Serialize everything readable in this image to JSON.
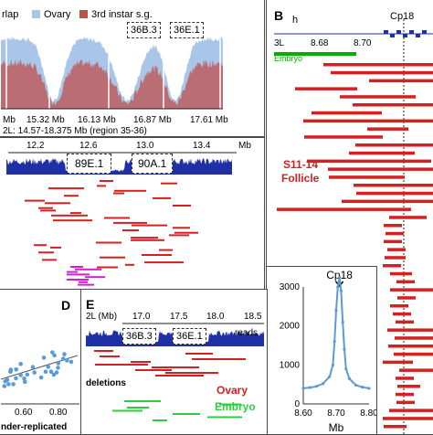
{
  "panel_a": {
    "legend": [
      "rlap",
      "Ovary",
      "3rd instar s.g."
    ],
    "band_labels": [
      "36B.3",
      "36E.1"
    ],
    "ticks": [
      "Mb",
      "15.32 Mb",
      "16.13 Mb",
      "16.87 Mb",
      "17.61 Mb"
    ],
    "region": "2L: 14.57-18.375 Mb (region 35-36)",
    "colors": {
      "ovary": "#a9c6e8",
      "salivary": "#c0504d"
    }
  },
  "panel_b": {
    "label": "B",
    "gene": "h",
    "chrom": "3L",
    "ticks": [
      "8.68",
      "8.70"
    ],
    "locus": "Cp18",
    "embryo": "Embryo",
    "follicle_stage": "S11-14",
    "follicle": "Follicle",
    "embryo_color": "#00b000",
    "deletion_color": "#d42020"
  },
  "panel_c": {
    "ticks": [
      "12.2",
      "12.6",
      "13.0",
      "13.4"
    ],
    "unit": "Mb",
    "band_labels": [
      "89E.1",
      "90A.1"
    ],
    "colors": {
      "coverage": "#1f2fa8",
      "deletions": "#d42020",
      "embryo": "#d020d0"
    }
  },
  "panel_d": {
    "label": "D",
    "x_ticks": [
      "0.60",
      "0.80"
    ],
    "x_label": "nder-replicated",
    "point_color": "#5b9bd5"
  },
  "panel_e": {
    "label": "E",
    "axis": "2L (Mb)",
    "ticks": [
      "17.0",
      "17.5",
      "18.0",
      "18.5"
    ],
    "band_labels": [
      "36B.3",
      "36E.1"
    ],
    "reads": "reads",
    "deletions": "deletions",
    "ovary": "Ovary",
    "embryo": "Embryo"
  },
  "chart_data": {
    "type": "line",
    "title": "Cp18",
    "xlabel": "Mb",
    "ylabel": "",
    "xlim": [
      8.6,
      8.8
    ],
    "ylim": [
      0,
      3000
    ],
    "x_ticks": [
      "8.60",
      "8.70",
      "8.80"
    ],
    "y_ticks": [
      "0",
      "1000",
      "2000",
      "3000"
    ],
    "x": [
      8.6,
      8.62,
      8.64,
      8.66,
      8.68,
      8.69,
      8.695,
      8.7,
      8.705,
      8.71,
      8.715,
      8.72,
      8.725,
      8.73,
      8.74,
      8.76,
      8.78,
      8.8
    ],
    "y": [
      400,
      420,
      450,
      520,
      700,
      1000,
      1600,
      2400,
      3000,
      3250,
      2900,
      2100,
      1400,
      900,
      650,
      480,
      430,
      400
    ],
    "color": "#5b9bd5"
  }
}
